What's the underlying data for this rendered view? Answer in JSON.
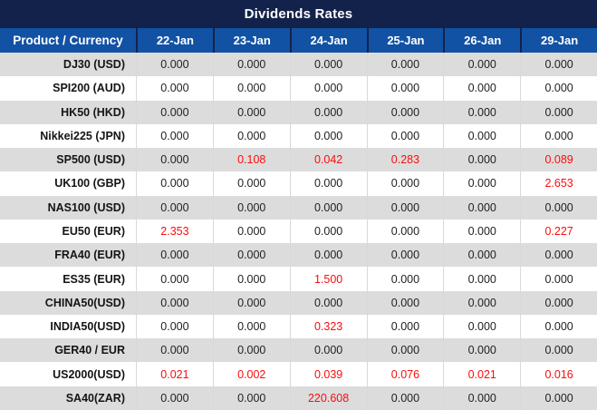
{
  "title": "Dividends Rates",
  "colors": {
    "title_bar": "#13224a",
    "header_blue": "#1252a4",
    "row_alt_gray": "#dcdcdc",
    "highlight_red": "#fb0d0d",
    "value_text": "#1f1f1f"
  },
  "chart_data": {
    "type": "table",
    "title": "Dividends Rates",
    "columns": [
      "Product / Currency",
      "22-Jan",
      "23-Jan",
      "24-Jan",
      "25-Jan",
      "26-Jan",
      "29-Jan"
    ],
    "rows": [
      {
        "product": "DJ30 (USD)",
        "values": [
          "0.000",
          "0.000",
          "0.000",
          "0.000",
          "0.000",
          "0.000"
        ],
        "red": [
          false,
          false,
          false,
          false,
          false,
          false
        ]
      },
      {
        "product": "SPI200 (AUD)",
        "values": [
          "0.000",
          "0.000",
          "0.000",
          "0.000",
          "0.000",
          "0.000"
        ],
        "red": [
          false,
          false,
          false,
          false,
          false,
          false
        ]
      },
      {
        "product": "HK50 (HKD)",
        "values": [
          "0.000",
          "0.000",
          "0.000",
          "0.000",
          "0.000",
          "0.000"
        ],
        "red": [
          false,
          false,
          false,
          false,
          false,
          false
        ]
      },
      {
        "product": "Nikkei225 (JPN)",
        "values": [
          "0.000",
          "0.000",
          "0.000",
          "0.000",
          "0.000",
          "0.000"
        ],
        "red": [
          false,
          false,
          false,
          false,
          false,
          false
        ]
      },
      {
        "product": "SP500 (USD)",
        "values": [
          "0.000",
          "0.108",
          "0.042",
          "0.283",
          "0.000",
          "0.089"
        ],
        "red": [
          false,
          true,
          true,
          true,
          false,
          true
        ]
      },
      {
        "product": "UK100 (GBP)",
        "values": [
          "0.000",
          "0.000",
          "0.000",
          "0.000",
          "0.000",
          "2.653"
        ],
        "red": [
          false,
          false,
          false,
          false,
          false,
          true
        ]
      },
      {
        "product": "NAS100 (USD)",
        "values": [
          "0.000",
          "0.000",
          "0.000",
          "0.000",
          "0.000",
          "0.000"
        ],
        "red": [
          false,
          false,
          false,
          false,
          false,
          false
        ]
      },
      {
        "product": "EU50 (EUR)",
        "values": [
          "2.353",
          "0.000",
          "0.000",
          "0.000",
          "0.000",
          "0.227"
        ],
        "red": [
          true,
          false,
          false,
          false,
          false,
          true
        ]
      },
      {
        "product": "FRA40 (EUR)",
        "values": [
          "0.000",
          "0.000",
          "0.000",
          "0.000",
          "0.000",
          "0.000"
        ],
        "red": [
          false,
          false,
          false,
          false,
          false,
          false
        ]
      },
      {
        "product": "ES35 (EUR)",
        "values": [
          "0.000",
          "0.000",
          "1.500",
          "0.000",
          "0.000",
          "0.000"
        ],
        "red": [
          false,
          false,
          true,
          false,
          false,
          false
        ]
      },
      {
        "product": "CHINA50(USD)",
        "values": [
          "0.000",
          "0.000",
          "0.000",
          "0.000",
          "0.000",
          "0.000"
        ],
        "red": [
          false,
          false,
          false,
          false,
          false,
          false
        ]
      },
      {
        "product": "INDIA50(USD)",
        "values": [
          "0.000",
          "0.000",
          "0.323",
          "0.000",
          "0.000",
          "0.000"
        ],
        "red": [
          false,
          false,
          true,
          false,
          false,
          false
        ]
      },
      {
        "product": "GER40 / EUR",
        "values": [
          "0.000",
          "0.000",
          "0.000",
          "0.000",
          "0.000",
          "0.000"
        ],
        "red": [
          false,
          false,
          false,
          false,
          false,
          false
        ]
      },
      {
        "product": "US2000(USD)",
        "values": [
          "0.021",
          "0.002",
          "0.039",
          "0.076",
          "0.021",
          "0.016"
        ],
        "red": [
          true,
          true,
          true,
          true,
          true,
          true
        ]
      },
      {
        "product": "SA40(ZAR)",
        "values": [
          "0.000",
          "0.000",
          "220.608",
          "0.000",
          "0.000",
          "0.000"
        ],
        "red": [
          false,
          false,
          true,
          false,
          false,
          false
        ]
      }
    ]
  }
}
